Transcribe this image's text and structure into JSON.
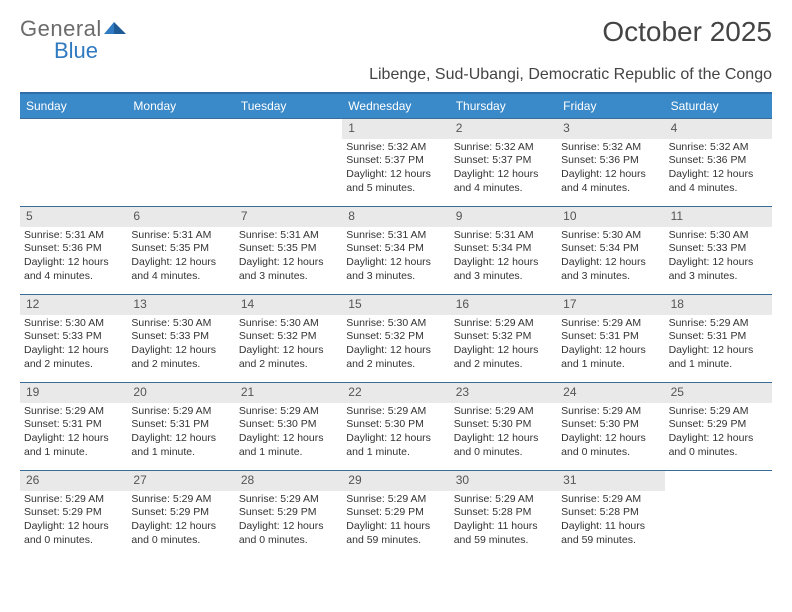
{
  "brand": {
    "part1": "General",
    "part2": "Blue"
  },
  "title": "October 2025",
  "subtitle": "Libenge, Sud-Ubangi, Democratic Republic of the Congo",
  "colors": {
    "header_bg": "#3a89c9",
    "header_text": "#ffffff",
    "divider": "#3a6c9a",
    "daynum_bg": "#e9e9e9",
    "text": "#333333",
    "logo_gray": "#6b6b6b",
    "logo_blue": "#2f7ac0"
  },
  "day_headers": [
    "Sunday",
    "Monday",
    "Tuesday",
    "Wednesday",
    "Thursday",
    "Friday",
    "Saturday"
  ],
  "weeks": [
    [
      {
        "day": "",
        "sunrise": "",
        "sunset": "",
        "daylight": ""
      },
      {
        "day": "",
        "sunrise": "",
        "sunset": "",
        "daylight": ""
      },
      {
        "day": "",
        "sunrise": "",
        "sunset": "",
        "daylight": ""
      },
      {
        "day": "1",
        "sunrise": "Sunrise: 5:32 AM",
        "sunset": "Sunset: 5:37 PM",
        "daylight": "Daylight: 12 hours and 5 minutes."
      },
      {
        "day": "2",
        "sunrise": "Sunrise: 5:32 AM",
        "sunset": "Sunset: 5:37 PM",
        "daylight": "Daylight: 12 hours and 4 minutes."
      },
      {
        "day": "3",
        "sunrise": "Sunrise: 5:32 AM",
        "sunset": "Sunset: 5:36 PM",
        "daylight": "Daylight: 12 hours and 4 minutes."
      },
      {
        "day": "4",
        "sunrise": "Sunrise: 5:32 AM",
        "sunset": "Sunset: 5:36 PM",
        "daylight": "Daylight: 12 hours and 4 minutes."
      }
    ],
    [
      {
        "day": "5",
        "sunrise": "Sunrise: 5:31 AM",
        "sunset": "Sunset: 5:36 PM",
        "daylight": "Daylight: 12 hours and 4 minutes."
      },
      {
        "day": "6",
        "sunrise": "Sunrise: 5:31 AM",
        "sunset": "Sunset: 5:35 PM",
        "daylight": "Daylight: 12 hours and 4 minutes."
      },
      {
        "day": "7",
        "sunrise": "Sunrise: 5:31 AM",
        "sunset": "Sunset: 5:35 PM",
        "daylight": "Daylight: 12 hours and 3 minutes."
      },
      {
        "day": "8",
        "sunrise": "Sunrise: 5:31 AM",
        "sunset": "Sunset: 5:34 PM",
        "daylight": "Daylight: 12 hours and 3 minutes."
      },
      {
        "day": "9",
        "sunrise": "Sunrise: 5:31 AM",
        "sunset": "Sunset: 5:34 PM",
        "daylight": "Daylight: 12 hours and 3 minutes."
      },
      {
        "day": "10",
        "sunrise": "Sunrise: 5:30 AM",
        "sunset": "Sunset: 5:34 PM",
        "daylight": "Daylight: 12 hours and 3 minutes."
      },
      {
        "day": "11",
        "sunrise": "Sunrise: 5:30 AM",
        "sunset": "Sunset: 5:33 PM",
        "daylight": "Daylight: 12 hours and 3 minutes."
      }
    ],
    [
      {
        "day": "12",
        "sunrise": "Sunrise: 5:30 AM",
        "sunset": "Sunset: 5:33 PM",
        "daylight": "Daylight: 12 hours and 2 minutes."
      },
      {
        "day": "13",
        "sunrise": "Sunrise: 5:30 AM",
        "sunset": "Sunset: 5:33 PM",
        "daylight": "Daylight: 12 hours and 2 minutes."
      },
      {
        "day": "14",
        "sunrise": "Sunrise: 5:30 AM",
        "sunset": "Sunset: 5:32 PM",
        "daylight": "Daylight: 12 hours and 2 minutes."
      },
      {
        "day": "15",
        "sunrise": "Sunrise: 5:30 AM",
        "sunset": "Sunset: 5:32 PM",
        "daylight": "Daylight: 12 hours and 2 minutes."
      },
      {
        "day": "16",
        "sunrise": "Sunrise: 5:29 AM",
        "sunset": "Sunset: 5:32 PM",
        "daylight": "Daylight: 12 hours and 2 minutes."
      },
      {
        "day": "17",
        "sunrise": "Sunrise: 5:29 AM",
        "sunset": "Sunset: 5:31 PM",
        "daylight": "Daylight: 12 hours and 1 minute."
      },
      {
        "day": "18",
        "sunrise": "Sunrise: 5:29 AM",
        "sunset": "Sunset: 5:31 PM",
        "daylight": "Daylight: 12 hours and 1 minute."
      }
    ],
    [
      {
        "day": "19",
        "sunrise": "Sunrise: 5:29 AM",
        "sunset": "Sunset: 5:31 PM",
        "daylight": "Daylight: 12 hours and 1 minute."
      },
      {
        "day": "20",
        "sunrise": "Sunrise: 5:29 AM",
        "sunset": "Sunset: 5:31 PM",
        "daylight": "Daylight: 12 hours and 1 minute."
      },
      {
        "day": "21",
        "sunrise": "Sunrise: 5:29 AM",
        "sunset": "Sunset: 5:30 PM",
        "daylight": "Daylight: 12 hours and 1 minute."
      },
      {
        "day": "22",
        "sunrise": "Sunrise: 5:29 AM",
        "sunset": "Sunset: 5:30 PM",
        "daylight": "Daylight: 12 hours and 1 minute."
      },
      {
        "day": "23",
        "sunrise": "Sunrise: 5:29 AM",
        "sunset": "Sunset: 5:30 PM",
        "daylight": "Daylight: 12 hours and 0 minutes."
      },
      {
        "day": "24",
        "sunrise": "Sunrise: 5:29 AM",
        "sunset": "Sunset: 5:30 PM",
        "daylight": "Daylight: 12 hours and 0 minutes."
      },
      {
        "day": "25",
        "sunrise": "Sunrise: 5:29 AM",
        "sunset": "Sunset: 5:29 PM",
        "daylight": "Daylight: 12 hours and 0 minutes."
      }
    ],
    [
      {
        "day": "26",
        "sunrise": "Sunrise: 5:29 AM",
        "sunset": "Sunset: 5:29 PM",
        "daylight": "Daylight: 12 hours and 0 minutes."
      },
      {
        "day": "27",
        "sunrise": "Sunrise: 5:29 AM",
        "sunset": "Sunset: 5:29 PM",
        "daylight": "Daylight: 12 hours and 0 minutes."
      },
      {
        "day": "28",
        "sunrise": "Sunrise: 5:29 AM",
        "sunset": "Sunset: 5:29 PM",
        "daylight": "Daylight: 12 hours and 0 minutes."
      },
      {
        "day": "29",
        "sunrise": "Sunrise: 5:29 AM",
        "sunset": "Sunset: 5:29 PM",
        "daylight": "Daylight: 11 hours and 59 minutes."
      },
      {
        "day": "30",
        "sunrise": "Sunrise: 5:29 AM",
        "sunset": "Sunset: 5:28 PM",
        "daylight": "Daylight: 11 hours and 59 minutes."
      },
      {
        "day": "31",
        "sunrise": "Sunrise: 5:29 AM",
        "sunset": "Sunset: 5:28 PM",
        "daylight": "Daylight: 11 hours and 59 minutes."
      },
      {
        "day": "",
        "sunrise": "",
        "sunset": "",
        "daylight": ""
      }
    ]
  ]
}
